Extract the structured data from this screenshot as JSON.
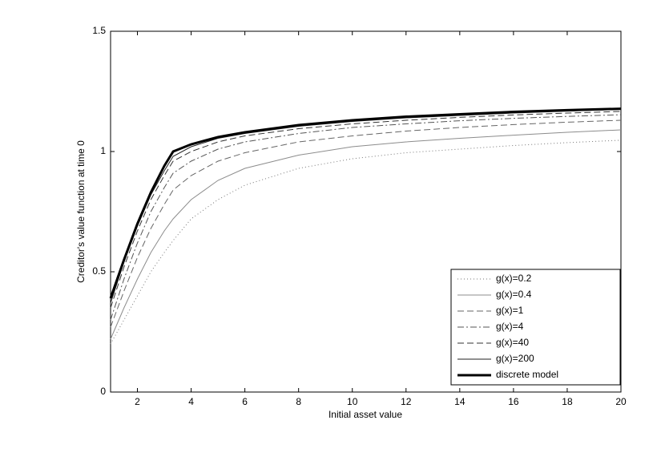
{
  "chart_data": {
    "type": "line",
    "xlabel": "Initial asset value",
    "ylabel": "Creditor's value function at time 0",
    "x": [
      1,
      1.5,
      2,
      2.5,
      3,
      3.33,
      4,
      5,
      6,
      8,
      10,
      12,
      14,
      16,
      18,
      20
    ],
    "series": [
      {
        "name": "g(x)=0.2",
        "color": "#777777",
        "dash": "1,3",
        "width": 1,
        "values": [
          0.2,
          0.3,
          0.4,
          0.5,
          0.58,
          0.63,
          0.72,
          0.8,
          0.86,
          0.93,
          0.97,
          0.995,
          1.01,
          1.025,
          1.037,
          1.047
        ]
      },
      {
        "name": "g(x)=0.4",
        "color": "#8c8c8c",
        "dash": "none",
        "width": 1,
        "values": [
          0.22,
          0.35,
          0.47,
          0.58,
          0.67,
          0.72,
          0.8,
          0.88,
          0.93,
          0.985,
          1.02,
          1.04,
          1.055,
          1.068,
          1.08,
          1.09
        ]
      },
      {
        "name": "g(x)=1",
        "color": "#666666",
        "dash": "8,4",
        "width": 1,
        "values": [
          0.27,
          0.42,
          0.56,
          0.68,
          0.78,
          0.84,
          0.9,
          0.96,
          0.995,
          1.04,
          1.065,
          1.085,
          1.1,
          1.112,
          1.122,
          1.13
        ]
      },
      {
        "name": "g(x)=4",
        "color": "#555555",
        "dash": "8,3,2,3",
        "width": 1,
        "values": [
          0.3,
          0.47,
          0.62,
          0.75,
          0.85,
          0.91,
          0.96,
          1.01,
          1.04,
          1.075,
          1.1,
          1.115,
          1.128,
          1.138,
          1.146,
          1.153
        ]
      },
      {
        "name": "g(x)=40",
        "color": "#333333",
        "dash": "8,4",
        "width": 1,
        "values": [
          0.35,
          0.52,
          0.67,
          0.8,
          0.9,
          0.96,
          1.0,
          1.04,
          1.065,
          1.095,
          1.115,
          1.13,
          1.142,
          1.152,
          1.16,
          1.167
        ]
      },
      {
        "name": "g(x)=200",
        "color": "#222222",
        "dash": "none",
        "width": 1,
        "values": [
          0.37,
          0.54,
          0.69,
          0.82,
          0.92,
          0.98,
          1.02,
          1.055,
          1.075,
          1.105,
          1.125,
          1.14,
          1.15,
          1.16,
          1.168,
          1.175
        ]
      },
      {
        "name": "discrete model",
        "color": "#000000",
        "dash": "none",
        "width": 3,
        "values": [
          0.39,
          0.55,
          0.7,
          0.83,
          0.94,
          1.0,
          1.03,
          1.06,
          1.08,
          1.11,
          1.13,
          1.145,
          1.155,
          1.165,
          1.172,
          1.178
        ]
      }
    ],
    "xlim": [
      1,
      20
    ],
    "xticks": [
      2,
      4,
      6,
      8,
      10,
      12,
      14,
      16,
      18,
      20
    ],
    "ylim": [
      0,
      1.5
    ],
    "yticks": [
      0,
      0.5,
      1,
      1.5
    ],
    "legend": "lower right"
  }
}
